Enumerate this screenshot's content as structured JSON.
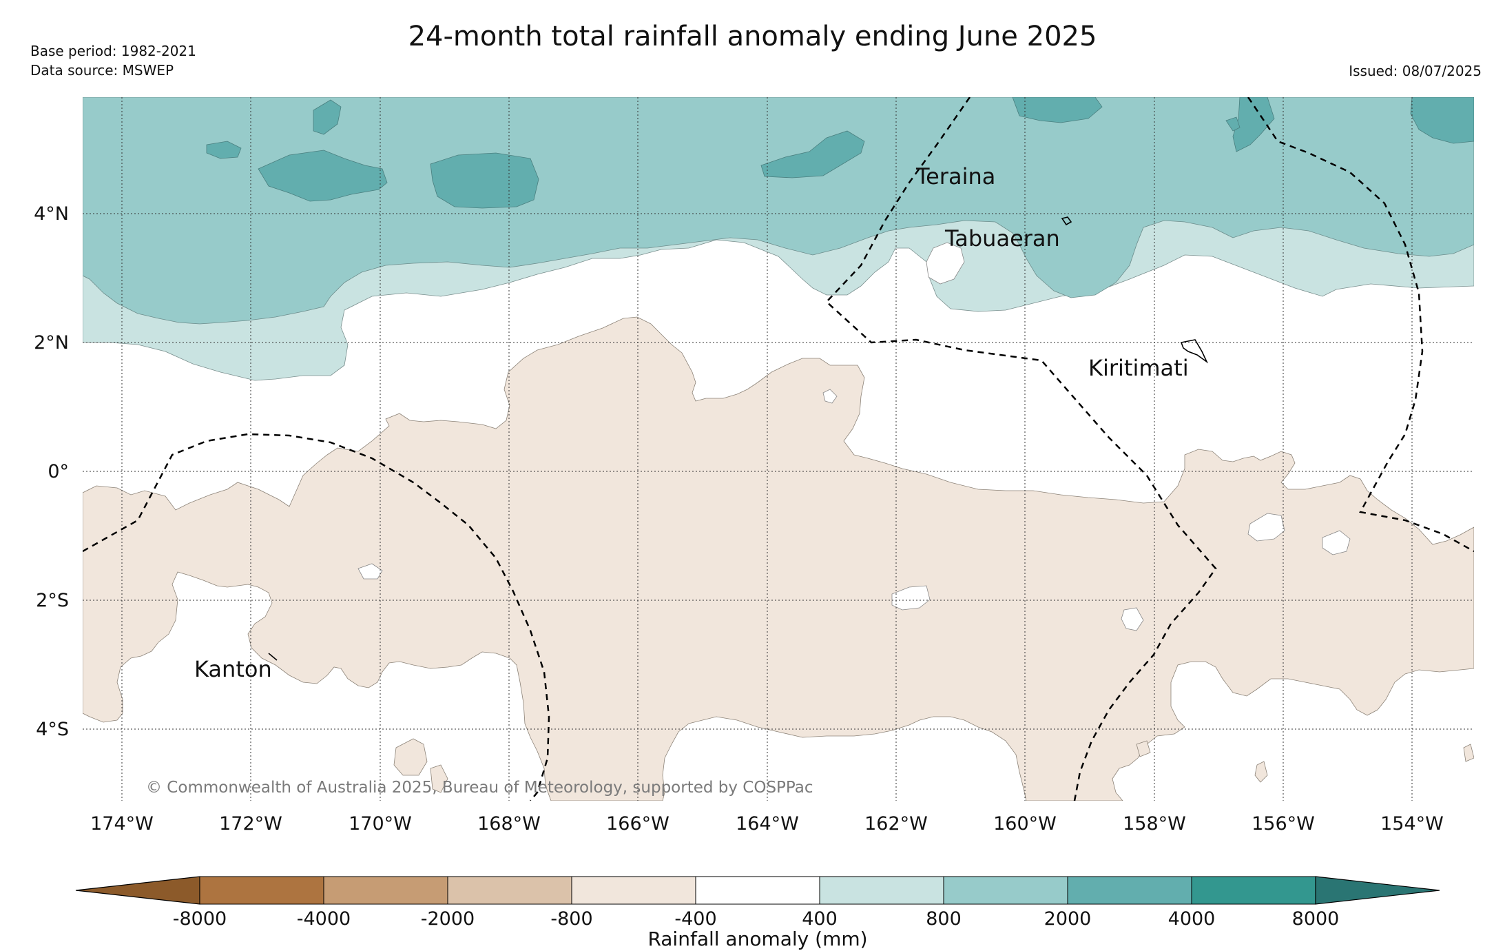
{
  "header": {
    "title": "24-month total rainfall anomaly ending June 2025",
    "base_period": "Base period: 1982-2021",
    "data_source": "Data source: MSWEP",
    "issued": "Issued: 08/07/2025"
  },
  "map": {
    "lon_labels": [
      "174°W",
      "172°W",
      "170°W",
      "168°W",
      "166°W",
      "164°W",
      "162°W",
      "160°W",
      "158°W",
      "156°W",
      "154°W"
    ],
    "lat_labels": [
      "4°N",
      "2°N",
      "0°",
      "2°S",
      "4°S"
    ],
    "places": [
      "Teraina",
      "Tabuaeran",
      "Kiritimati",
      "Kanton"
    ],
    "copyright": "© Commonwealth of Australia 2025, Bureau of Meteorology, supported by COSPPac",
    "colors": {
      "dry_light": "#f1e6dc",
      "wet_400_800": "#c9e3e1",
      "wet_800_2000": "#97cbca",
      "wet_2000_4000": "#62aeae",
      "eez_line": "#000000"
    }
  },
  "colorbar": {
    "title": "Rainfall anomaly (mm)",
    "ticks": [
      "-8000",
      "-4000",
      "-2000",
      "-800",
      "-400",
      "400",
      "800",
      "2000",
      "4000",
      "8000"
    ],
    "colors": [
      "#8c5a2a",
      "#ad7440",
      "#c69c74",
      "#dbc2aa",
      "#f1e6dc",
      "#ffffff",
      "#c9e3e1",
      "#97cbca",
      "#62aeae",
      "#33978f",
      "#2a7573"
    ]
  }
}
